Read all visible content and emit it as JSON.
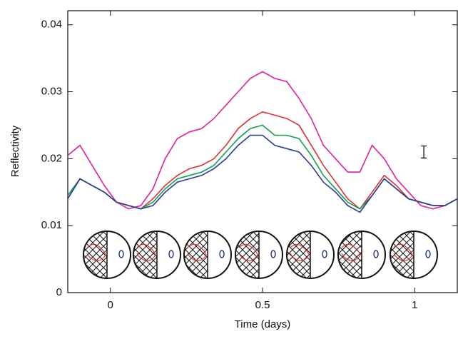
{
  "chart_data": {
    "type": "line",
    "x_label": "Time (days)",
    "y_label": "Reflectivity",
    "x": [
      -0.14,
      -0.1,
      -0.06,
      -0.02,
      0.02,
      0.06,
      0.1,
      0.14,
      0.18,
      0.22,
      0.26,
      0.3,
      0.34,
      0.38,
      0.42,
      0.46,
      0.5,
      0.54,
      0.58,
      0.62,
      0.66,
      0.7,
      0.74,
      0.78,
      0.82,
      0.86,
      0.9,
      0.94,
      0.98,
      1.02,
      1.06,
      1.1,
      1.14
    ],
    "series": [
      {
        "color": "#e0209a",
        "values": [
          0.0205,
          0.022,
          0.019,
          0.016,
          0.0135,
          0.0125,
          0.013,
          0.0155,
          0.02,
          0.023,
          0.024,
          0.0245,
          0.026,
          0.028,
          0.03,
          0.032,
          0.033,
          0.032,
          0.0315,
          0.029,
          0.026,
          0.022,
          0.02,
          0.018,
          0.018,
          0.022,
          0.02,
          0.017,
          0.015,
          0.013,
          0.0125,
          0.013,
          0.014
        ]
      },
      {
        "color": "#e03030",
        "values": [
          0.0145,
          0.017,
          0.016,
          0.015,
          0.0135,
          0.013,
          0.0125,
          0.014,
          0.016,
          0.0175,
          0.0185,
          0.019,
          0.02,
          0.022,
          0.0245,
          0.026,
          0.027,
          0.0265,
          0.026,
          0.025,
          0.022,
          0.019,
          0.0165,
          0.014,
          0.0125,
          0.015,
          0.0175,
          0.016,
          0.014,
          0.0135,
          0.013,
          0.013,
          0.014
        ]
      },
      {
        "color": "#10a050",
        "values": [
          0.0145,
          0.017,
          0.016,
          0.015,
          0.0135,
          0.013,
          0.0125,
          0.0135,
          0.0155,
          0.017,
          0.0175,
          0.018,
          0.019,
          0.021,
          0.023,
          0.0245,
          0.025,
          0.0235,
          0.0235,
          0.023,
          0.0205,
          0.0175,
          0.0155,
          0.0135,
          0.0125,
          0.0145,
          0.017,
          0.0155,
          0.014,
          0.0135,
          0.013,
          0.013,
          0.014
        ]
      },
      {
        "color": "#283c96",
        "values": [
          0.014,
          0.017,
          0.016,
          0.015,
          0.0135,
          0.013,
          0.0125,
          0.013,
          0.015,
          0.0165,
          0.017,
          0.0175,
          0.0185,
          0.02,
          0.022,
          0.0235,
          0.0235,
          0.022,
          0.0215,
          0.021,
          0.019,
          0.0165,
          0.015,
          0.013,
          0.012,
          0.0145,
          0.017,
          0.0155,
          0.014,
          0.0135,
          0.013,
          0.013,
          0.014
        ]
      }
    ],
    "error_bar": {
      "x": 1.03,
      "y": 0.021,
      "error": 0.0009
    },
    "xlim": [
      -0.14,
      1.14
    ],
    "xticks": [
      0,
      0.5,
      1
    ],
    "ylim": [
      0,
      0.0421
    ],
    "yticks": [
      0,
      0.01,
      0.02,
      0.03,
      0.04
    ]
  }
}
